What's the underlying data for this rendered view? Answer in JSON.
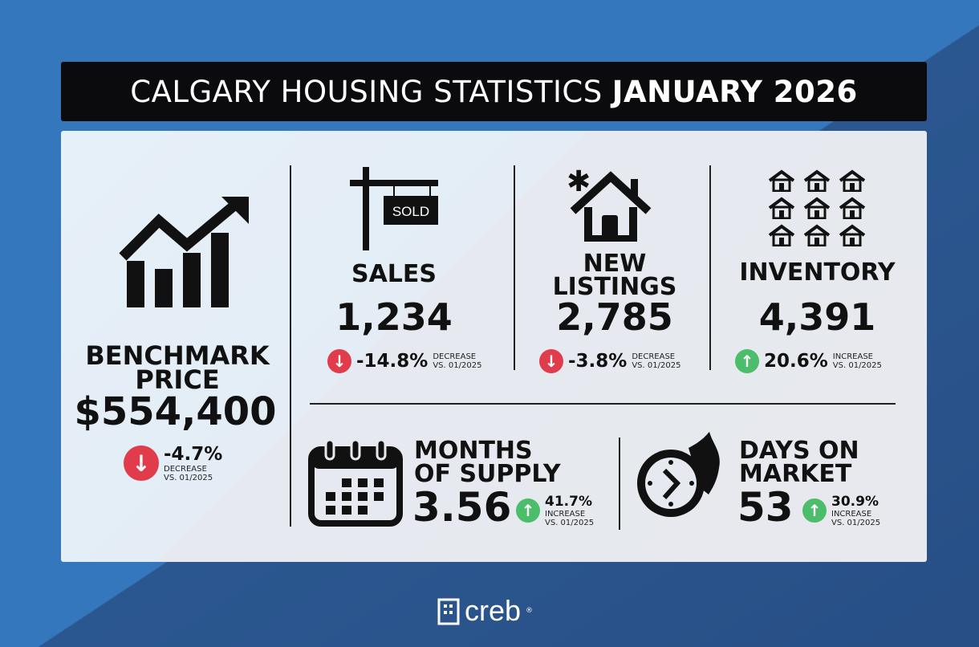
{
  "title": {
    "main": "CALGARY HOUSING STATISTICS",
    "period": "JANUARY 2026"
  },
  "benchmark": {
    "label1": "BENCHMARK",
    "label2": "PRICE",
    "value": "$554,400",
    "change": "-4.7%",
    "direction": "DECREASE",
    "vs": "VS. 01/2025"
  },
  "sales": {
    "sign": "SOLD",
    "label": "SALES",
    "value": "1,234",
    "change": "-14.8%",
    "direction": "DECREASE",
    "vs": "VS. 01/2025"
  },
  "new_listings": {
    "label1": "NEW",
    "label2": "LISTINGS",
    "value": "2,785",
    "change": "-3.8%",
    "direction": "DECREASE",
    "vs": "VS. 01/2025"
  },
  "inventory": {
    "label": "INVENTORY",
    "value": "4,391",
    "change": "20.6%",
    "direction": "INCREASE",
    "vs": "VS. 01/2025"
  },
  "months_supply": {
    "label1": "MONTHS",
    "label2": "OF SUPPLY",
    "value": "3.56",
    "change": "41.7%",
    "direction": "INCREASE",
    "vs": "VS. 01/2025"
  },
  "days_on_market": {
    "label1": "DAYS ON",
    "label2": "MARKET",
    "value": "53",
    "change": "30.9%",
    "direction": "INCREASE",
    "vs": "VS. 01/2025"
  },
  "footer": {
    "brand": "creb",
    "reg": "®"
  },
  "colors": {
    "decrease": "#e03c4b",
    "increase": "#4cbd6a"
  }
}
